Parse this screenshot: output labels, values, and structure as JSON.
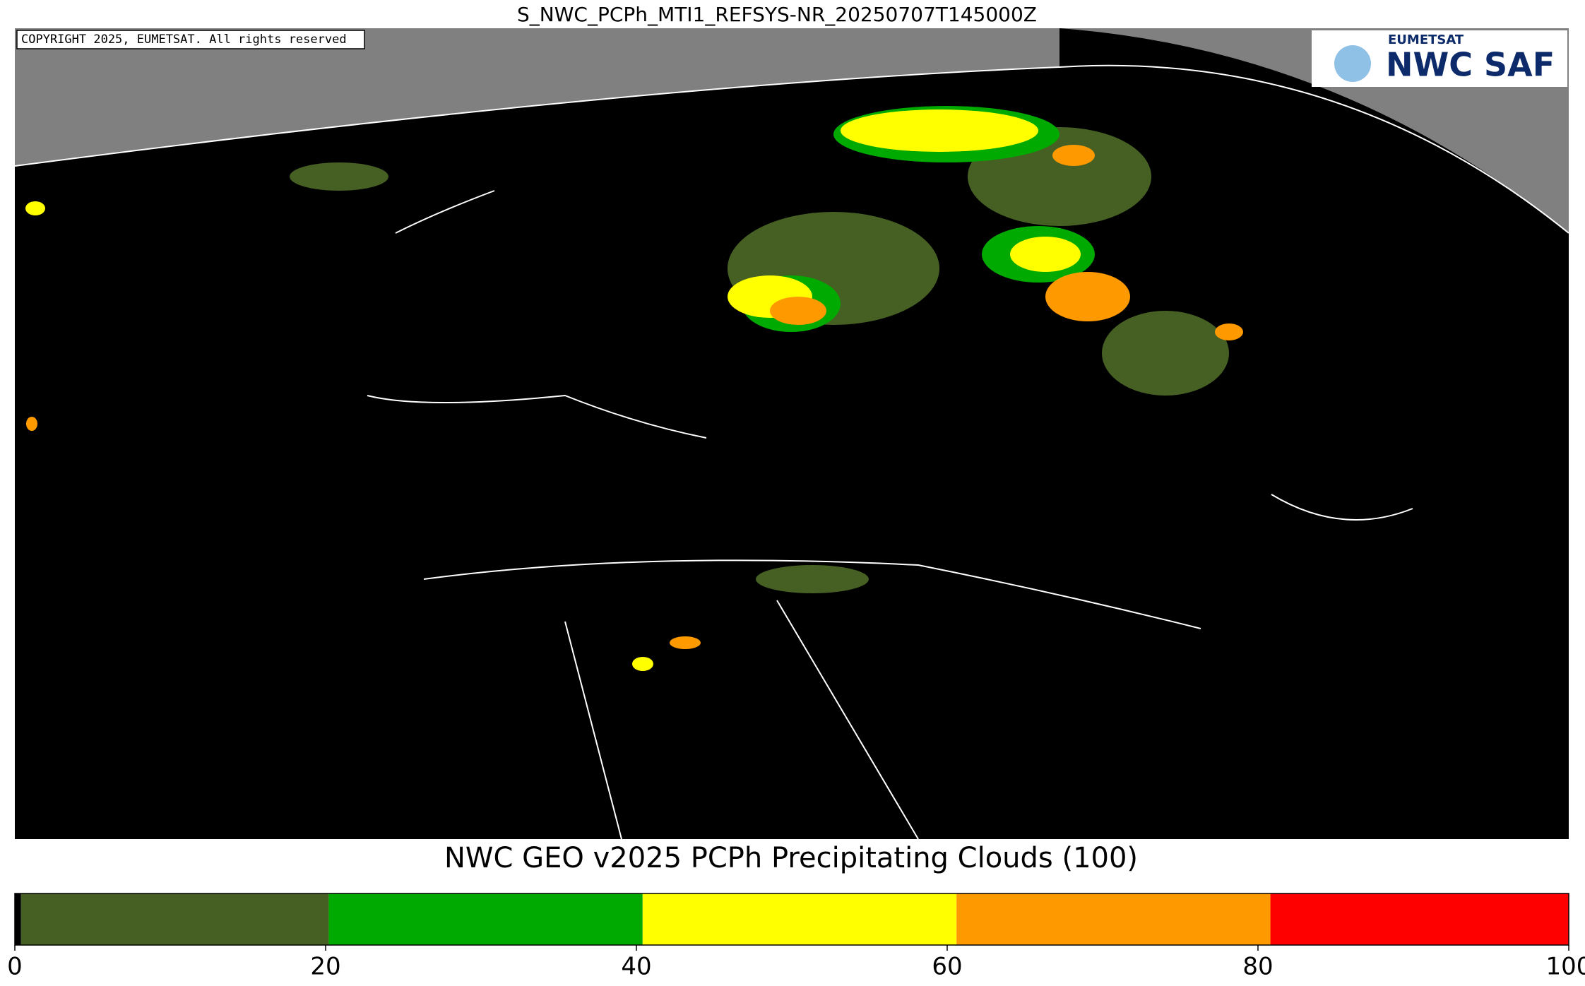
{
  "map": {
    "title": "S_NWC_PCPh_MTI1_REFSYS-NR_20250707T145000Z",
    "copyright": "COPYRIGHT 2025, EUMETSAT. All rights reserved",
    "logo": {
      "top": "EUMETSAT",
      "main": "NWC SAF"
    }
  },
  "colorbar": {
    "title": "NWC GEO v2025 PCPh Precipitating Clouds (100)",
    "range": [
      0,
      100
    ],
    "ticks": [
      0,
      20,
      40,
      60,
      80,
      100
    ],
    "bounds": [
      0,
      0.4,
      20.2,
      40.4,
      60.6,
      80.8,
      100
    ],
    "colors": [
      "#000000",
      "#466023",
      "#00aa00",
      "#ffff00",
      "#ff9900",
      "#ff0000"
    ]
  }
}
